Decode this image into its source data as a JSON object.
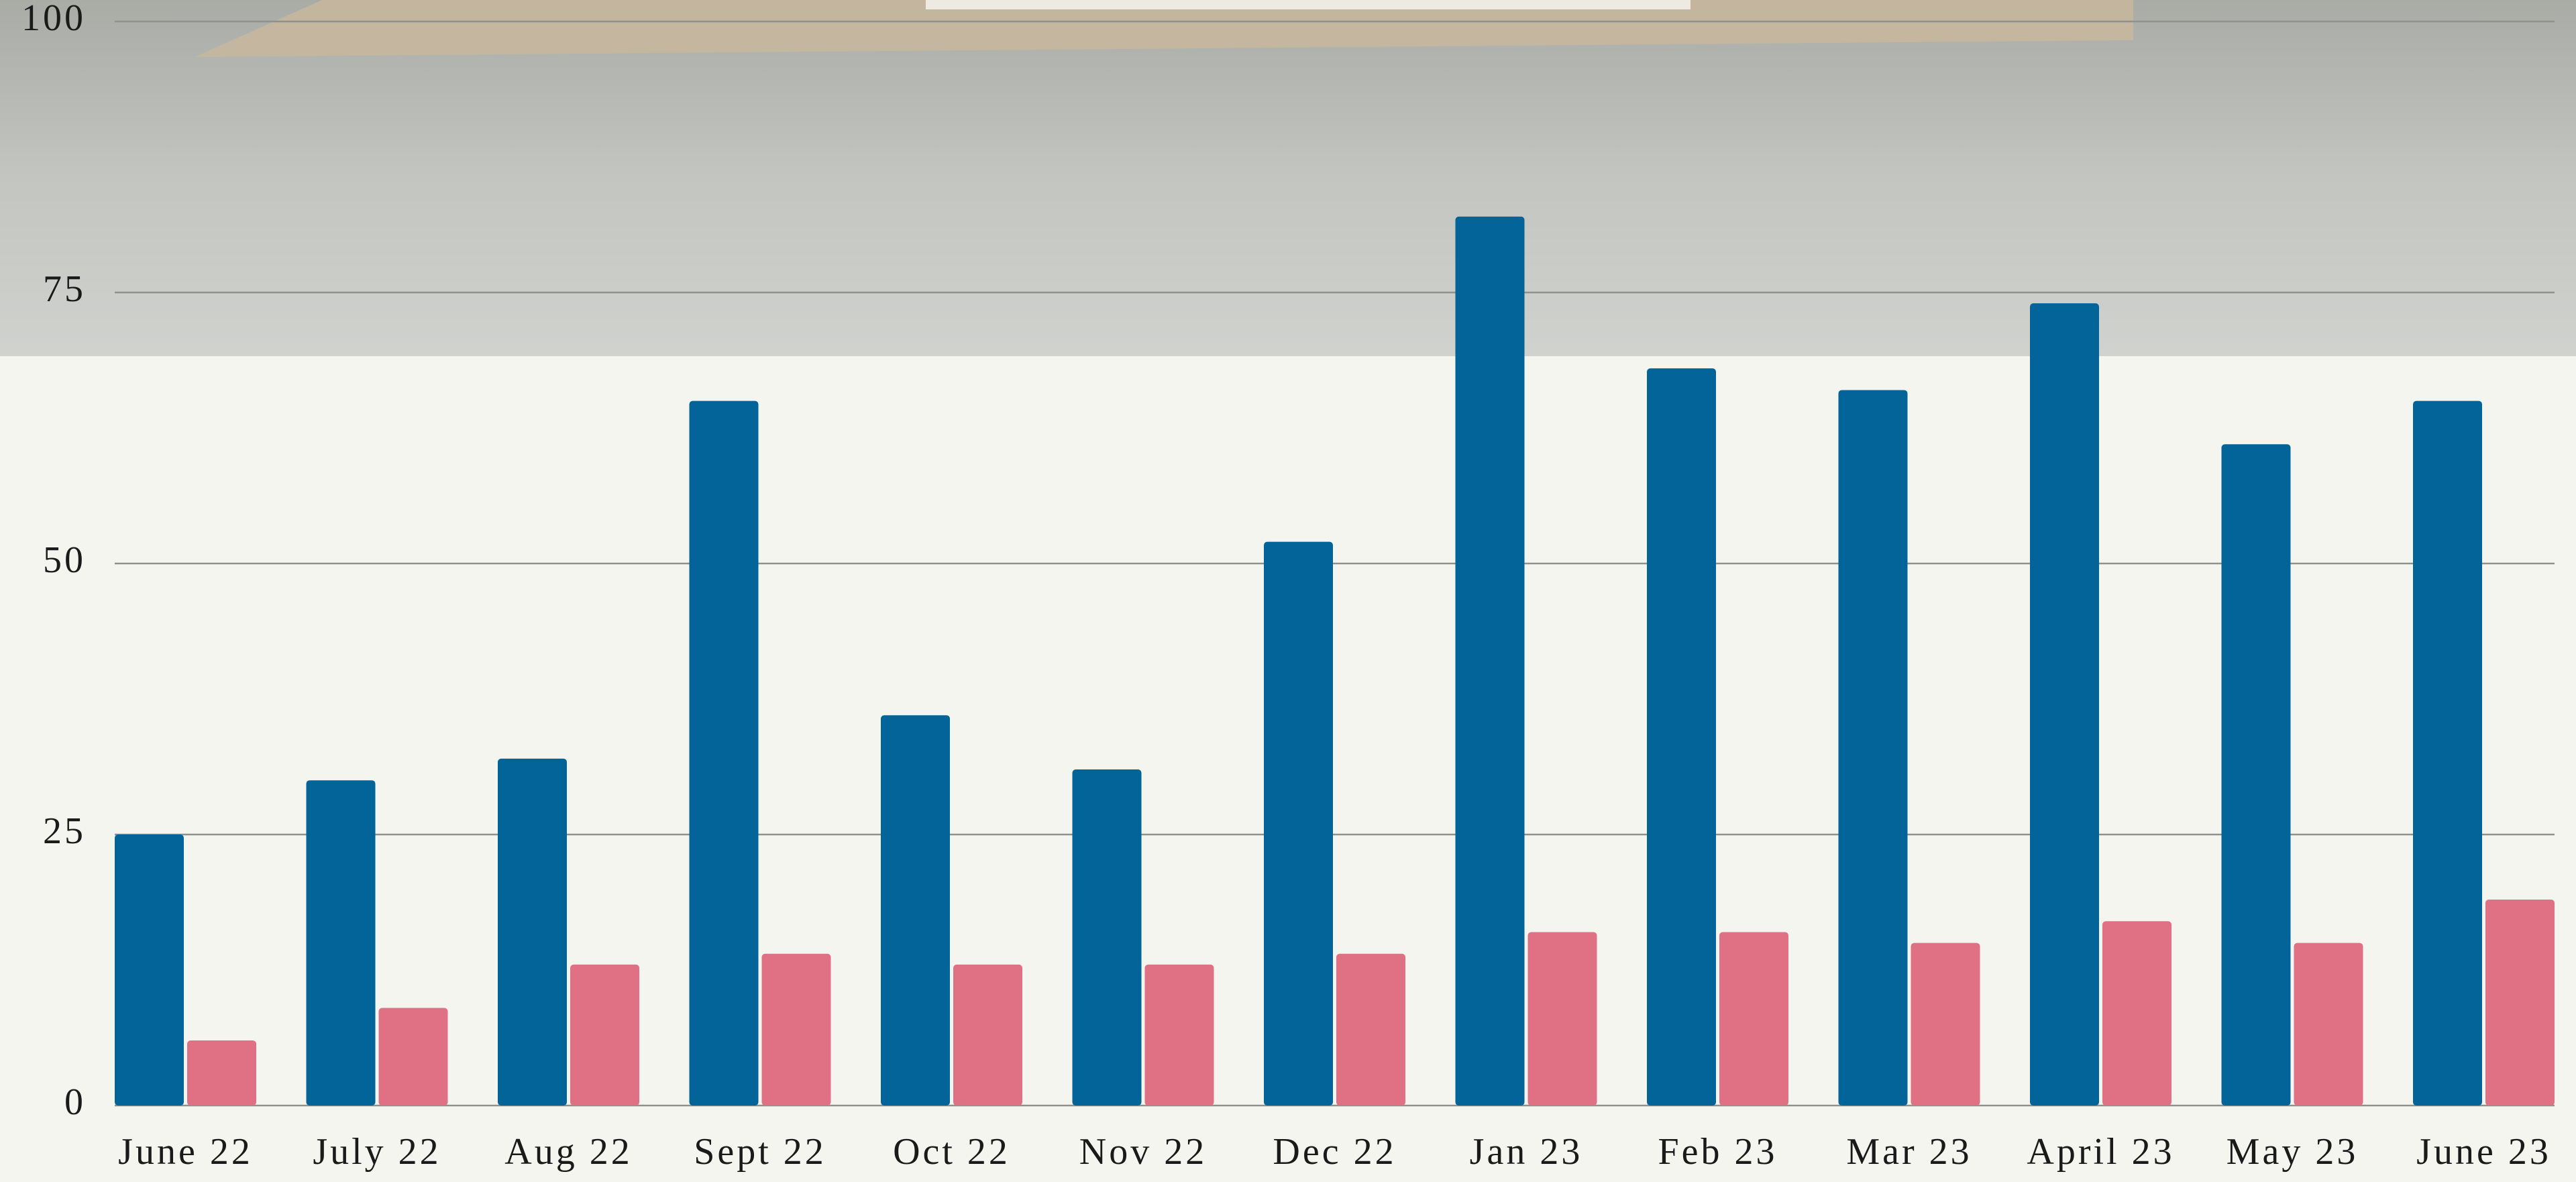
{
  "chart_data": {
    "type": "bar",
    "categories": [
      "June 22",
      "July 22",
      "Aug 22",
      "Sept 22",
      "Oct 22",
      "Nov 22",
      "Dec 22",
      "Jan 23",
      "Feb 23",
      "Mar 23",
      "April 23",
      "May 23",
      "June 23"
    ],
    "series": [
      {
        "color": "#03649a",
        "values": [
          25,
          30,
          32,
          65,
          36,
          31,
          52,
          82,
          68,
          66,
          74,
          61,
          65
        ]
      },
      {
        "color": "#e07083",
        "values": [
          6,
          9,
          13,
          14,
          13,
          13,
          14,
          16,
          16,
          15,
          17,
          15,
          19
        ]
      }
    ],
    "ylim": [
      0,
      100
    ],
    "yticks": [
      0,
      25,
      50,
      75,
      100
    ],
    "grid": true
  }
}
